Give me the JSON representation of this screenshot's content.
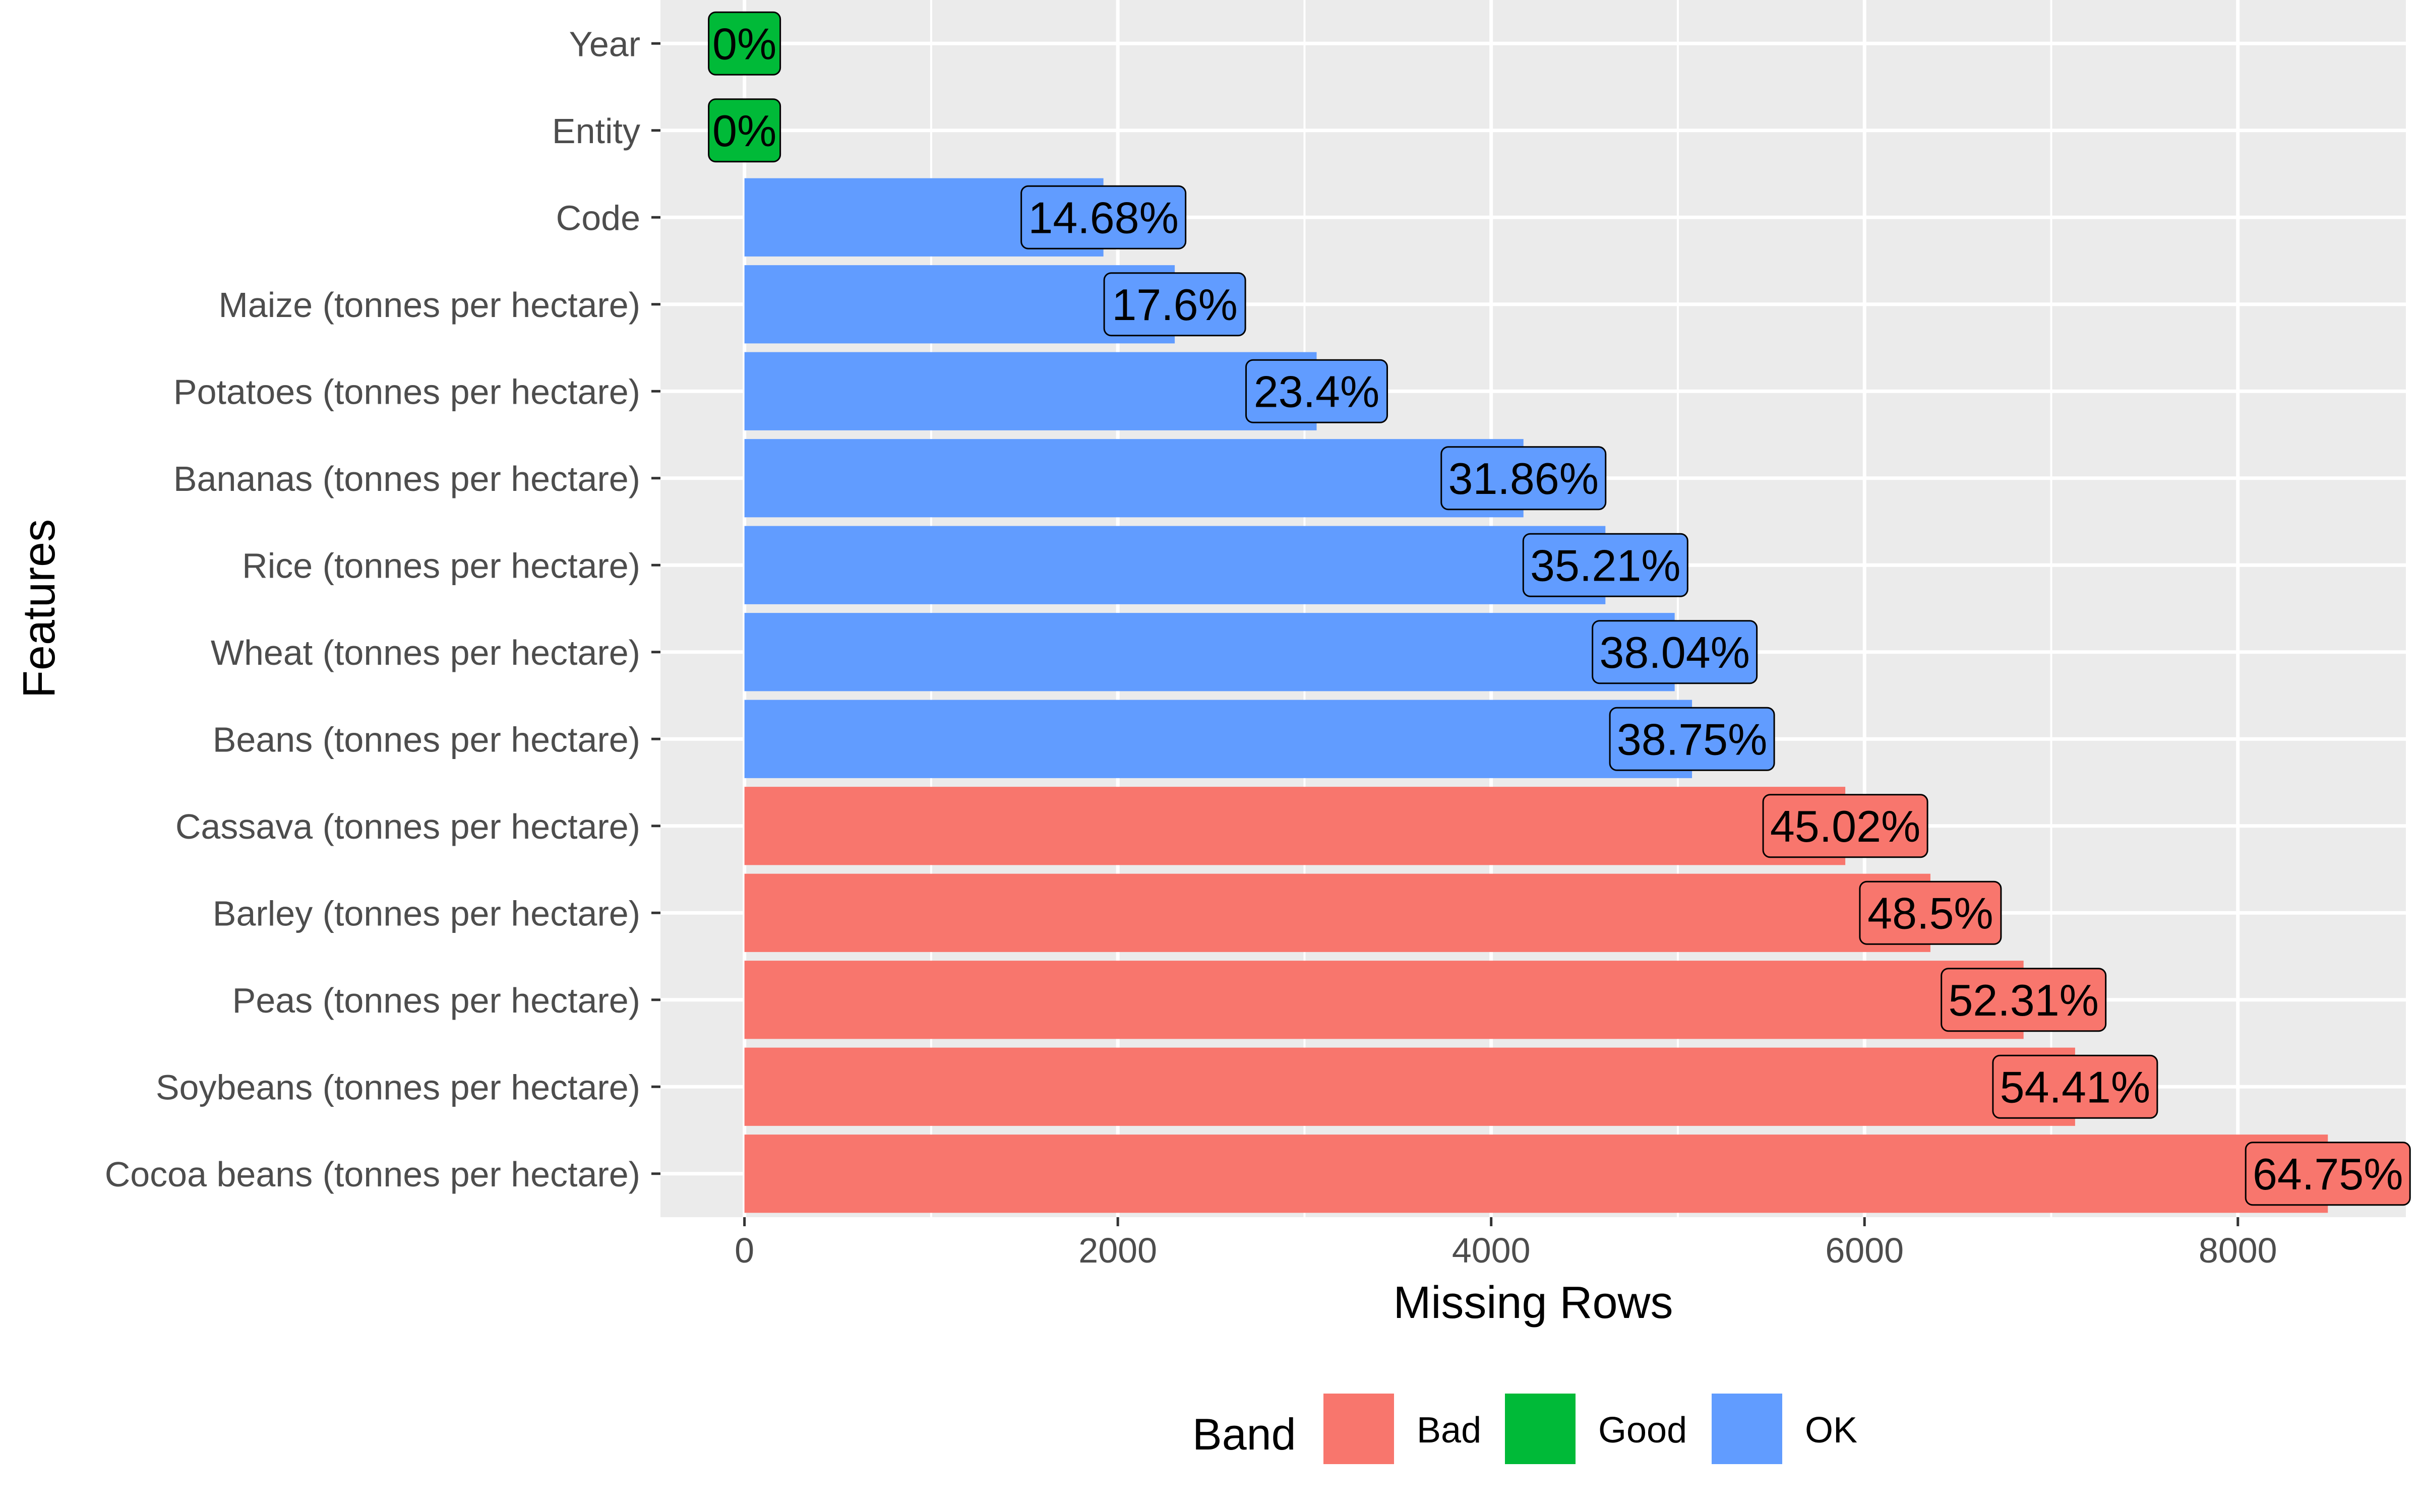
{
  "chart_data": {
    "type": "bar",
    "orientation": "horizontal",
    "xlabel": "Missing Rows",
    "ylabel": "Features",
    "xlim": [
      -450,
      8900
    ],
    "x_ticks": [
      0,
      2000,
      4000,
      6000,
      8000
    ],
    "grid": true,
    "legend": {
      "title": "Band",
      "position": "bottom",
      "entries": [
        {
          "name": "Bad",
          "color": "#F8766D"
        },
        {
          "name": "Good",
          "color": "#00BA38"
        },
        {
          "name": "OK",
          "color": "#619CFF"
        }
      ]
    },
    "categories": [
      {
        "name": "Year",
        "value": 0,
        "label": "0%",
        "band": "Good"
      },
      {
        "name": "Entity",
        "value": 0,
        "label": "0%",
        "band": "Good"
      },
      {
        "name": "Code",
        "value": 1923,
        "label": "14.68%",
        "band": "OK"
      },
      {
        "name": "Maize (tonnes per hectare)",
        "value": 2305,
        "label": "17.6%",
        "band": "OK"
      },
      {
        "name": "Potatoes (tonnes per hectare)",
        "value": 3065,
        "label": "23.4%",
        "band": "OK"
      },
      {
        "name": "Bananas (tonnes per hectare)",
        "value": 4173,
        "label": "31.86%",
        "band": "OK"
      },
      {
        "name": "Rice (tonnes per hectare)",
        "value": 4612,
        "label": "35.21%",
        "band": "OK"
      },
      {
        "name": "Wheat (tonnes per hectare)",
        "value": 4983,
        "label": "38.04%",
        "band": "OK"
      },
      {
        "name": "Beans (tonnes per hectare)",
        "value": 5076,
        "label": "38.75%",
        "band": "OK"
      },
      {
        "name": "Cassava (tonnes per hectare)",
        "value": 5897,
        "label": "45.02%",
        "band": "Bad"
      },
      {
        "name": "Barley (tonnes per hectare)",
        "value": 6353,
        "label": "48.5%",
        "band": "Bad"
      },
      {
        "name": "Peas (tonnes per hectare)",
        "value": 6852,
        "label": "52.31%",
        "band": "Bad"
      },
      {
        "name": "Soybeans (tonnes per hectare)",
        "value": 7128,
        "label": "54.41%",
        "band": "Bad"
      },
      {
        "name": "Cocoa beans (tonnes per hectare)",
        "value": 8482,
        "label": "64.75%",
        "band": "Bad"
      }
    ]
  }
}
